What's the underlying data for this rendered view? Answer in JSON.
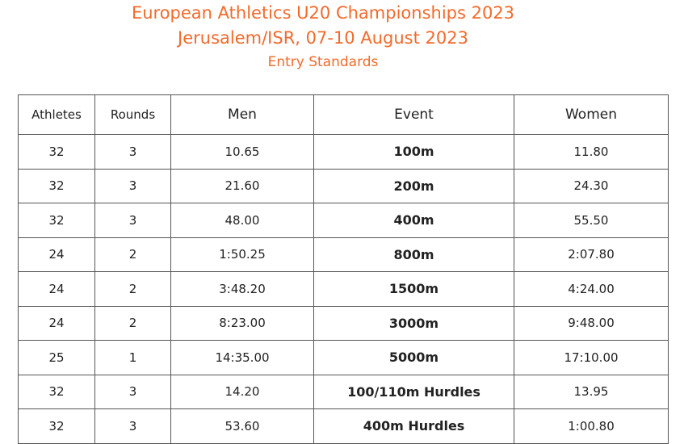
{
  "header": {
    "title": "European Athletics U20 Championships 2023",
    "subtitle": "Jerusalem/ISR, 07-10 August 2023",
    "caption": "Entry Standards"
  },
  "table": {
    "columns": [
      "Athletes",
      "Rounds",
      "Men",
      "Event",
      "Women"
    ],
    "rows": [
      [
        "32",
        "3",
        "10.65",
        "100m",
        "11.80"
      ],
      [
        "32",
        "3",
        "21.60",
        "200m",
        "24.30"
      ],
      [
        "32",
        "3",
        "48.00",
        "400m",
        "55.50"
      ],
      [
        "24",
        "2",
        "1:50.25",
        "800m",
        "2:07.80"
      ],
      [
        "24",
        "2",
        "3:48.20",
        "1500m",
        "4:24.00"
      ],
      [
        "24",
        "2",
        "8:23.00",
        "3000m",
        "9:48.00"
      ],
      [
        "25",
        "1",
        "14:35.00",
        "5000m",
        "17:10.00"
      ],
      [
        "32",
        "3",
        "14.20",
        "100/110m Hurdles",
        "13.95"
      ],
      [
        "32",
        "3",
        "53.60",
        "400m Hurdles",
        "1:00.80"
      ]
    ]
  }
}
